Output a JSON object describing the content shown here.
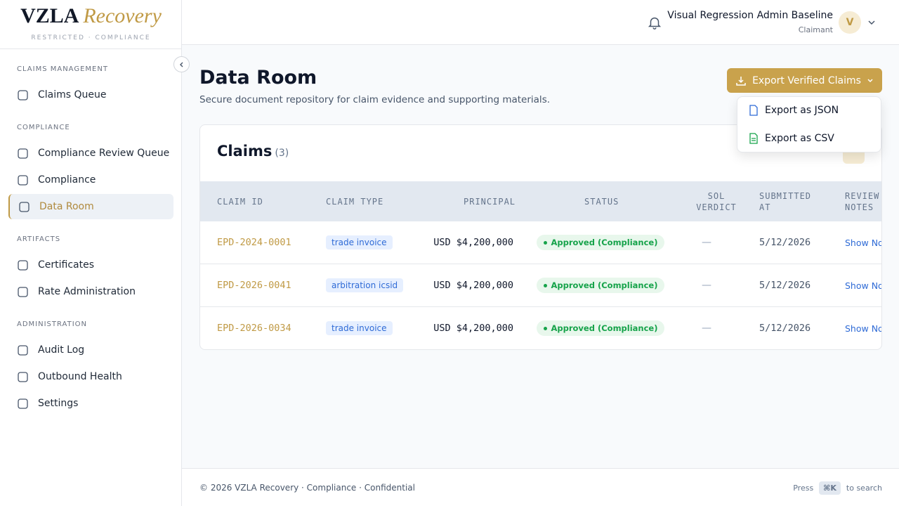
{
  "sidebar": {
    "brand": "VZLA",
    "brand_accent": "Recovery",
    "tagline": "RESTRICTED · COMPLIANCE",
    "sections": [
      {
        "heading": "CLAIMS MANAGEMENT",
        "items": [
          "Claims Queue"
        ]
      },
      {
        "heading": "COMPLIANCE",
        "items": [
          "Compliance Review Queue",
          "Compliance",
          "Data Room"
        ]
      },
      {
        "heading": "ARTIFACTS",
        "items": [
          "Certificates",
          "Rate Administration"
        ]
      },
      {
        "heading": "ADMINISTRATION",
        "items": [
          "Audit Log",
          "Outbound Health",
          "Settings"
        ]
      }
    ]
  },
  "header": {
    "user_name": "Visual Regression Admin Baseline",
    "user_role": "Claimant",
    "avatar": "V"
  },
  "page": {
    "title": "Data Room",
    "subtitle": "Secure document repository for claim evidence and supporting materials.",
    "export_button": "Export Verified Claims",
    "export_menu": [
      "Export as JSON",
      "Export as CSV"
    ]
  },
  "table": {
    "title": "Claims",
    "count": "(3)",
    "columns": [
      "CLAIM ID",
      "CLAIM TYPE",
      "PRINCIPAL",
      "STATUS",
      "SOL VERDICT",
      "SUBMITTED AT",
      "REVIEW NOTES"
    ],
    "rows": [
      [
        "EPD-2024-0001",
        "trade invoice",
        "USD $4,200,000",
        "Approved (Compliance)",
        "—",
        "5/12/2026",
        "Show Notes"
      ],
      [
        "EPD-2026-0041",
        "arbitration icsid",
        "USD $4,200,000",
        "Approved (Compliance)",
        "—",
        "5/12/2026",
        "Show Notes"
      ],
      [
        "EPD-2026-0034",
        "trade invoice",
        "USD $4,200,000",
        "Approved (Compliance)",
        "—",
        "5/12/2026",
        "Show Notes"
      ]
    ]
  },
  "footer": {
    "copyright": "© 2026 VZLA Recovery · Compliance · Confidential",
    "hint_before": "Press",
    "shortcut": "⌘K",
    "hint_after": "to search"
  }
}
